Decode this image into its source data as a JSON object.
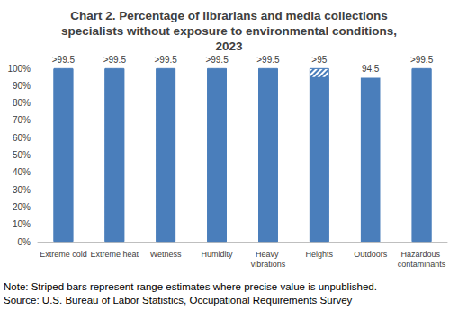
{
  "chart_data": {
    "type": "bar",
    "title": "Chart 2. Percentage of librarians and media collections\nspecialists without exposure to environmental conditions,\n2023",
    "categories": [
      "Extreme cold",
      "Extreme heat",
      "Wetness",
      "Humidity",
      "Heavy vibrations",
      "Heights",
      "Outdoors",
      "Hazardous contaminants"
    ],
    "values": [
      99.5,
      99.5,
      99.5,
      99.5,
      99.5,
      95,
      94.5,
      99.5
    ],
    "value_labels": [
      ">99.5",
      ">99.5",
      ">99.5",
      ">99.5",
      ">99.5",
      ">95",
      "94.5",
      ">99.5"
    ],
    "range_max": [
      100,
      100,
      100,
      100,
      100,
      100,
      null,
      100
    ],
    "color": "#4a7ebb",
    "ylim": [
      0,
      100
    ],
    "yticks": [
      {
        "value": 0,
        "label": "0%"
      },
      {
        "value": 10,
        "label": "10%"
      },
      {
        "value": 20,
        "label": "20%"
      },
      {
        "value": 30,
        "label": "30%"
      },
      {
        "value": 40,
        "label": "40%"
      },
      {
        "value": 50,
        "label": "50%"
      },
      {
        "value": 60,
        "label": "60%"
      },
      {
        "value": 70,
        "label": "70%"
      },
      {
        "value": 80,
        "label": "80%"
      },
      {
        "value": 90,
        "label": "90%"
      },
      {
        "value": 100,
        "label": "100%"
      }
    ],
    "grid": false,
    "data_labels": true,
    "note": "Note: Striped bars represent range estimates where precise value is unpublished.",
    "source": "Source: U.S. Bureau of Labor Statistics, Occupational Requirements Survey"
  }
}
